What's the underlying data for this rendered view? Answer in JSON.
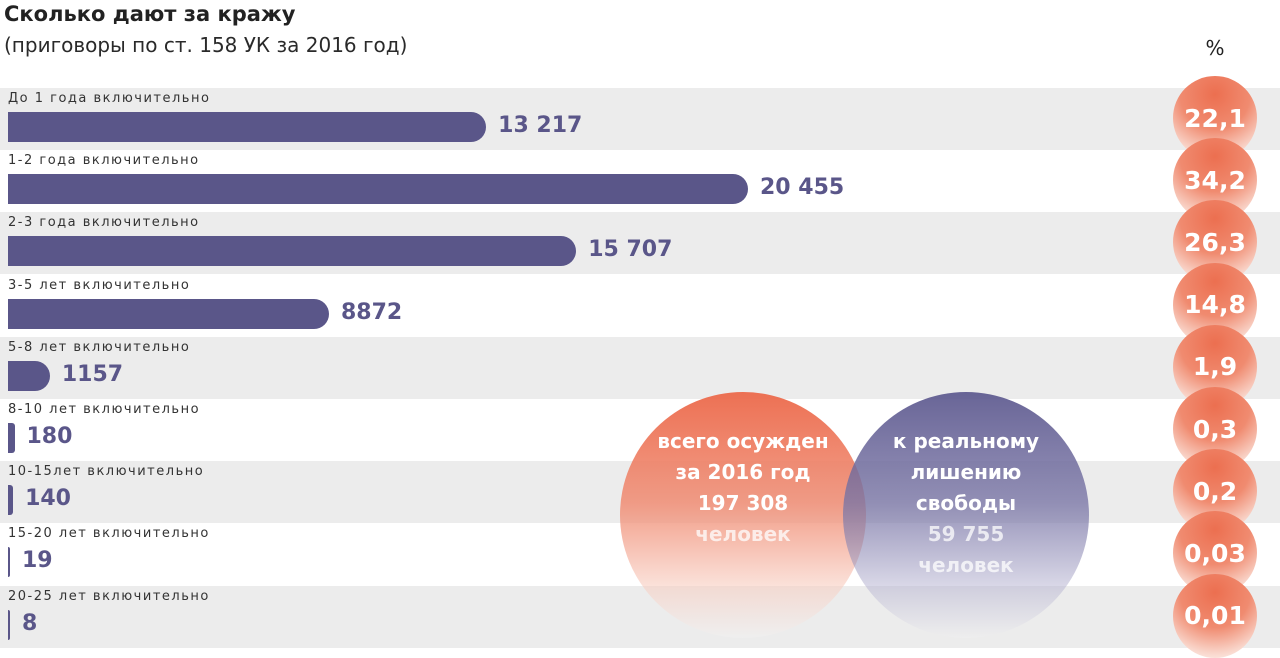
{
  "title": "Сколько дают за кражу",
  "subtitle": "(приговоры по ст. 158 УК за 2016 год)",
  "percent_header": "%",
  "colors": {
    "bar": "#5a5689",
    "row_shaded": "#ececec",
    "bubble": "#ec6f50",
    "venn_red": "#ec6c4e",
    "venn_purple": "#5c588e"
  },
  "chart_data": {
    "type": "bar",
    "orientation": "horizontal",
    "title": "Сколько дают за кражу",
    "subtitle": "(приговоры по ст. 158 УК за 2016 год)",
    "categories": [
      "До 1 года включительно",
      "1-2 года включительно",
      "2-3 года включительно",
      "3-5 лет включительно",
      "5-8 лет включительно",
      "8-10 лет включительно",
      "10-15лет включительно",
      "15-20 лет включительно",
      "20-25 лет включительно"
    ],
    "values": [
      13217,
      20455,
      15707,
      8872,
      1157,
      180,
      140,
      19,
      8
    ],
    "value_labels": [
      "13 217",
      "20 455",
      "15 707",
      "8872",
      "1157",
      "180",
      "140",
      "19",
      "8"
    ],
    "percent_labels": [
      "22,1",
      "34,2",
      "26,3",
      "14,8",
      "1,9",
      "0,3",
      "0,2",
      "0,03",
      "0,01"
    ],
    "percent_header": "%",
    "xlim": [
      0,
      20455
    ]
  },
  "venn": {
    "left_lines": [
      "всего осужден",
      "за 2016 год",
      "197 308",
      "человек"
    ],
    "right_lines": [
      "к реальному",
      "лишению",
      "свободы",
      "59 755",
      "человек"
    ]
  }
}
